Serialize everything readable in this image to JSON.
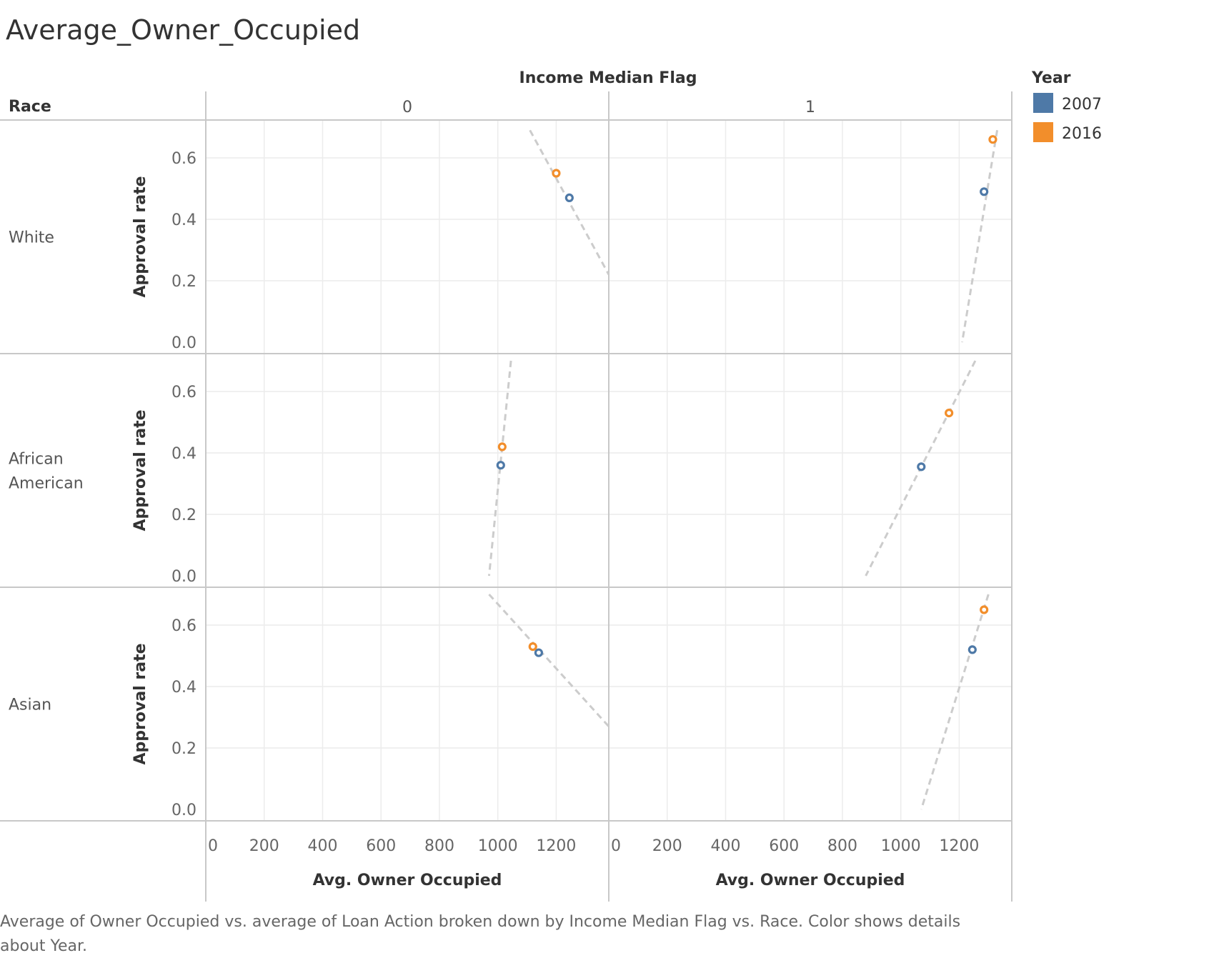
{
  "chart_data": {
    "type": "scatter",
    "title": "Average_Owner_Occupied",
    "column_field": "Income Median Flag",
    "row_field": "Race",
    "columns": [
      "0",
      "1"
    ],
    "rows": [
      {
        "label_lines": [
          "White"
        ]
      },
      {
        "label_lines": [
          "African",
          "American"
        ]
      },
      {
        "label_lines": [
          "Asian"
        ]
      }
    ],
    "xlabel": "Avg. Owner Occupied",
    "ylabel": "Approval rate",
    "xlim": [
      0,
      1380
    ],
    "ylim": [
      0,
      0.7
    ],
    "xticks": [
      0,
      200,
      400,
      600,
      800,
      1000,
      1200
    ],
    "yticks": [
      0.0,
      0.2,
      0.4,
      0.6
    ],
    "ytick_labels": [
      "0.0",
      "0.2",
      "0.4",
      "0.6"
    ],
    "grid": true,
    "legend": {
      "title": "Year",
      "position": "top-right",
      "entries": [
        {
          "name": "2007",
          "color": "#4e79a7"
        },
        {
          "name": "2016",
          "color": "#f28e2b"
        }
      ]
    },
    "trend_line_color": "#cccccc",
    "panels": [
      {
        "row": 0,
        "col": 0,
        "points": [
          {
            "year": "2007",
            "x": 1245,
            "y": 0.47
          },
          {
            "year": "2016",
            "x": 1200,
            "y": 0.55
          }
        ],
        "trend": [
          [
            1110,
            0.69
          ],
          [
            1380,
            0.22
          ]
        ]
      },
      {
        "row": 0,
        "col": 1,
        "points": [
          {
            "year": "2007",
            "x": 1285,
            "y": 0.49
          },
          {
            "year": "2016",
            "x": 1315,
            "y": 0.66
          }
        ],
        "trend": [
          [
            1330,
            0.69
          ],
          [
            1210,
            0.0
          ]
        ]
      },
      {
        "row": 1,
        "col": 0,
        "points": [
          {
            "year": "2007",
            "x": 1010,
            "y": 0.36
          },
          {
            "year": "2016",
            "x": 1015,
            "y": 0.42
          }
        ],
        "trend": [
          [
            1045,
            0.7
          ],
          [
            970,
            0.0
          ]
        ]
      },
      {
        "row": 1,
        "col": 1,
        "points": [
          {
            "year": "2007",
            "x": 1070,
            "y": 0.355
          },
          {
            "year": "2016",
            "x": 1165,
            "y": 0.53
          }
        ],
        "trend": [
          [
            1255,
            0.7
          ],
          [
            880,
            0.0
          ]
        ]
      },
      {
        "row": 2,
        "col": 0,
        "points": [
          {
            "year": "2007",
            "x": 1140,
            "y": 0.51
          },
          {
            "year": "2016",
            "x": 1120,
            "y": 0.53
          }
        ],
        "trend": [
          [
            970,
            0.7
          ],
          [
            1380,
            0.27
          ]
        ]
      },
      {
        "row": 2,
        "col": 1,
        "points": [
          {
            "year": "2007",
            "x": 1245,
            "y": 0.52
          },
          {
            "year": "2016",
            "x": 1285,
            "y": 0.65
          }
        ],
        "trend": [
          [
            1300,
            0.7
          ],
          [
            1070,
            0.0
          ]
        ]
      }
    ]
  },
  "caption_lines": [
    "Average of Owner Occupied vs. average of Loan Action broken down by Income Median Flag vs. Race.  Color shows details",
    "about Year."
  ]
}
